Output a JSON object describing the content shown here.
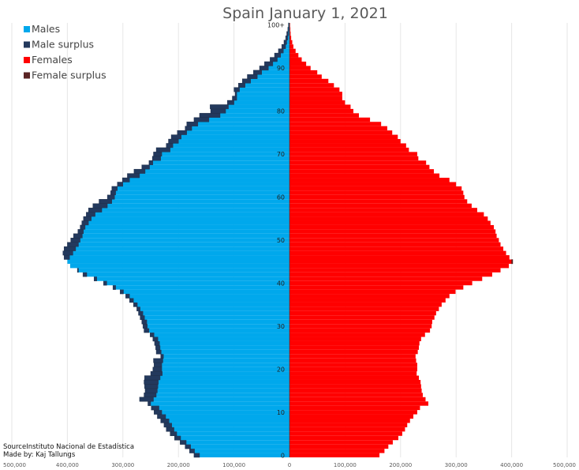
{
  "chart_data": {
    "type": "bar",
    "orientation": "horizontal",
    "title": "Spain January 1, 2021",
    "xlim": [
      -500000,
      500000
    ],
    "x_ticks": [
      {
        "value": -500000,
        "label": "500,000"
      },
      {
        "value": -400000,
        "label": "400,000"
      },
      {
        "value": -300000,
        "label": "300,000"
      },
      {
        "value": -200000,
        "label": "200,000"
      },
      {
        "value": -100000,
        "label": "100,000"
      },
      {
        "value": 0,
        "label": "0"
      },
      {
        "value": 100000,
        "label": "100,000"
      },
      {
        "value": 200000,
        "label": "200,000"
      },
      {
        "value": 300000,
        "label": "300,000"
      },
      {
        "value": 400000,
        "label": "400,000"
      },
      {
        "value": 500000,
        "label": "500,000"
      }
    ],
    "y_ticks": [
      {
        "age": 0,
        "label": "0"
      },
      {
        "age": 10,
        "label": "10"
      },
      {
        "age": 20,
        "label": "20"
      },
      {
        "age": 30,
        "label": "30"
      },
      {
        "age": 40,
        "label": "40"
      },
      {
        "age": 50,
        "label": "50"
      },
      {
        "age": 60,
        "label": "60"
      },
      {
        "age": 70,
        "label": "70"
      },
      {
        "age": 80,
        "label": "80"
      },
      {
        "age": 90,
        "label": "90"
      },
      {
        "age": 100,
        "label": "100+"
      }
    ],
    "grid": true,
    "legend_position": "top-left",
    "legend": [
      {
        "label": "Males",
        "color": "#00a8ec"
      },
      {
        "label": "Male surplus",
        "color": "#23395d"
      },
      {
        "label": "Females",
        "color": "#ff0000"
      },
      {
        "label": "Female surplus",
        "color": "#5a2424"
      }
    ],
    "ages": [
      0,
      1,
      2,
      3,
      4,
      5,
      6,
      7,
      8,
      9,
      10,
      11,
      12,
      13,
      14,
      15,
      16,
      17,
      18,
      19,
      20,
      21,
      22,
      23,
      24,
      25,
      26,
      27,
      28,
      29,
      30,
      31,
      32,
      33,
      34,
      35,
      36,
      37,
      38,
      39,
      40,
      41,
      42,
      43,
      44,
      45,
      46,
      47,
      48,
      49,
      50,
      51,
      52,
      53,
      54,
      55,
      56,
      57,
      58,
      59,
      60,
      61,
      62,
      63,
      64,
      65,
      66,
      67,
      68,
      69,
      70,
      71,
      72,
      73,
      74,
      75,
      76,
      77,
      78,
      79,
      80,
      81,
      82,
      83,
      84,
      85,
      86,
      87,
      88,
      89,
      90,
      91,
      92,
      93,
      94,
      95,
      96,
      97,
      98,
      99,
      100
    ],
    "series": [
      {
        "name": "Males",
        "values": [
          172000,
          180000,
          188000,
          197000,
          207000,
          215000,
          222000,
          226000,
          232000,
          238000,
          244000,
          249000,
          255000,
          270000,
          262000,
          260000,
          261000,
          262000,
          261000,
          250000,
          246000,
          244000,
          245000,
          232000,
          240000,
          241000,
          243000,
          246000,
          251000,
          262000,
          264000,
          266000,
          269000,
          272000,
          275000,
          281000,
          288000,
          295000,
          305000,
          318000,
          335000,
          352000,
          372000,
          382000,
          395000,
          400000,
          406000,
          408000,
          406000,
          400000,
          394000,
          389000,
          381000,
          377000,
          374000,
          371000,
          366000,
          362000,
          354000,
          343000,
          328000,
          322000,
          320000,
          310000,
          301000,
          292000,
          280000,
          266000,
          253000,
          247000,
          245000,
          240000,
          222000,
          218000,
          213000,
          202000,
          188000,
          185000,
          172000,
          162000,
          142000,
          143000,
          112000,
          103000,
          98000,
          100000,
          92000,
          85000,
          76000,
          65000,
          54000,
          45000,
          35000,
          27000,
          20000,
          14000,
          10000,
          7000,
          5000,
          3000,
          2000
        ]
      },
      {
        "name": "Females",
        "values": [
          162000,
          171000,
          178000,
          186000,
          196000,
          203000,
          208000,
          212000,
          217000,
          223000,
          230000,
          235000,
          250000,
          245000,
          240000,
          238000,
          237000,
          236000,
          233000,
          229000,
          230000,
          230000,
          228000,
          227000,
          231000,
          233000,
          234000,
          237000,
          244000,
          253000,
          256000,
          257000,
          261000,
          264000,
          269000,
          274000,
          281000,
          288000,
          299000,
          313000,
          329000,
          347000,
          365000,
          380000,
          395000,
          402000,
          396000,
          390000,
          385000,
          380000,
          377000,
          373000,
          371000,
          368000,
          362000,
          357000,
          350000,
          338000,
          328000,
          320000,
          315000,
          313000,
          310000,
          300000,
          288000,
          270000,
          260000,
          252000,
          246000,
          232000,
          230000,
          215000,
          210000,
          200000,
          195000,
          185000,
          176000,
          165000,
          145000,
          125000,
          115000,
          110000,
          100000,
          95000,
          95000,
          90000,
          80000,
          70000,
          58000,
          50000,
          38000,
          30000,
          22000,
          16000,
          11000,
          7000,
          5000,
          3000,
          2000,
          1500,
          1000
        ]
      }
    ],
    "notes": [
      "SourceInstituto Nacional de Estadística",
      "Made by: Kaj Tallungs"
    ]
  }
}
